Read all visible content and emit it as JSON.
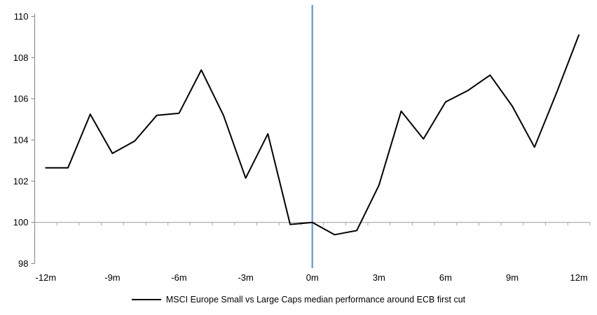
{
  "chart_data": {
    "type": "line",
    "title": "",
    "legend": "MSCI Europe Small vs Large Caps median performance around ECB first cut",
    "categories": [
      -12,
      -11,
      -10,
      -9,
      -8,
      -7,
      -6,
      -5,
      -4,
      -3,
      -2,
      -1,
      0,
      1,
      2,
      3,
      4,
      5,
      6,
      7,
      8,
      9,
      10,
      11,
      12
    ],
    "x_tick_labels": [
      "-12m",
      "-9m",
      "-6m",
      "-3m",
      "0m",
      "3m",
      "6m",
      "9m",
      "12m"
    ],
    "x_tick_every": 3,
    "series": [
      {
        "name": "MSCI Europe Small vs Large Caps median performance around ECB first cut",
        "values": [
          102.65,
          102.65,
          105.25,
          103.35,
          103.95,
          105.2,
          105.3,
          107.4,
          105.2,
          102.15,
          104.3,
          99.9,
          100.0,
          99.4,
          99.6,
          101.8,
          105.4,
          104.05,
          105.85,
          106.4,
          107.15,
          105.65,
          103.65,
          106.3,
          109.1
        ]
      }
    ],
    "ylim": [
      98,
      110
    ],
    "y_ticks": [
      98,
      100,
      102,
      104,
      106,
      108,
      110
    ],
    "axis_cross_y": 100,
    "event_line_x": 0,
    "grid": false,
    "legend_position": "bottom",
    "colors": {
      "series_line": "#000000",
      "event_line": "#78A2CE",
      "x_axis": "#A6A6A6",
      "y_axis": "#8F8F8F",
      "text": "#000000"
    }
  }
}
